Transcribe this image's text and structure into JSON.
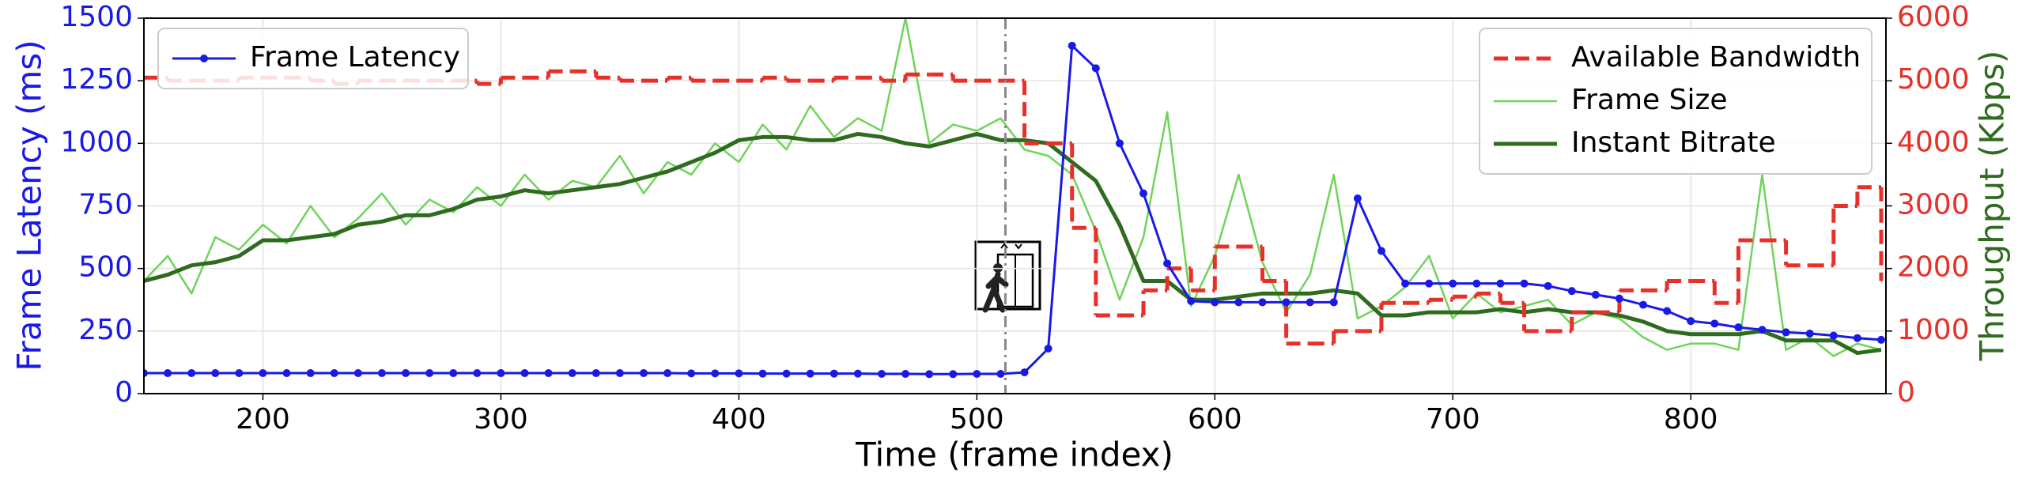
{
  "chart_data": {
    "type": "line",
    "xlabel": "Time (frame index)",
    "ylabel": "Frame Latency (ms)",
    "y2label": "Throughput (Kbps)",
    "ycolor": "#1a1ae6",
    "y2tick_color": "#e8302a",
    "y2label_color": "#2e6b1f",
    "x": [
      150,
      160,
      170,
      180,
      190,
      200,
      210,
      220,
      230,
      240,
      250,
      260,
      270,
      280,
      290,
      300,
      310,
      320,
      330,
      340,
      350,
      360,
      370,
      380,
      390,
      400,
      410,
      420,
      430,
      440,
      450,
      460,
      470,
      480,
      490,
      500,
      510,
      520,
      530,
      540,
      550,
      560,
      570,
      580,
      590,
      600,
      610,
      620,
      630,
      640,
      650,
      660,
      670,
      680,
      690,
      700,
      710,
      720,
      730,
      740,
      750,
      760,
      770,
      780,
      790,
      800,
      810,
      820,
      830,
      840,
      850,
      860,
      870,
      880
    ],
    "xlim": [
      150,
      882
    ],
    "xticks": [
      200,
      300,
      400,
      500,
      600,
      700,
      800
    ],
    "ylim": [
      0,
      1500
    ],
    "yticks": [
      0,
      250,
      500,
      750,
      1000,
      1250,
      1500
    ],
    "y2lim": [
      0,
      6000
    ],
    "y2ticks": [
      0,
      1000,
      2000,
      3000,
      4000,
      5000,
      6000
    ],
    "grid": true,
    "vline": 512,
    "legend": "upper left",
    "legend2": "upper right",
    "series": [
      {
        "name": "Frame Latency",
        "color": "#1a1ae6",
        "marker": true,
        "width": 3,
        "values": [
          82,
          82,
          82,
          82,
          82,
          82,
          82,
          82,
          82,
          82,
          82,
          82,
          82,
          82,
          82,
          82,
          82,
          82,
          82,
          82,
          82,
          82,
          82,
          81,
          81,
          81,
          80,
          80,
          80,
          80,
          80,
          79,
          79,
          78,
          78,
          79,
          79,
          85,
          180,
          1390,
          1300,
          1000,
          800,
          520,
          370,
          365,
          365,
          365,
          365,
          365,
          365,
          780,
          570,
          440,
          440,
          440,
          440,
          440,
          440,
          430,
          410,
          395,
          380,
          355,
          330,
          290,
          280,
          265,
          255,
          245,
          240,
          232,
          222,
          215
        ]
      },
      {
        "name": "Available Bandwidth",
        "color": "#e8302a",
        "axis": "y2",
        "dash": true,
        "drawstyle": "steps-post",
        "width": 5,
        "values": [
          5050,
          5000,
          5000,
          5000,
          5050,
          5050,
          5050,
          5000,
          4950,
          5000,
          5000,
          5000,
          5000,
          5000,
          4950,
          5050,
          5050,
          5150,
          5150,
          5050,
          5000,
          5000,
          5050,
          5000,
          5000,
          5000,
          5050,
          5000,
          5000,
          5050,
          5050,
          5000,
          5100,
          5100,
          5000,
          5000,
          5000,
          4000,
          4000,
          2650,
          1250,
          1250,
          1650,
          2000,
          1650,
          2350,
          2350,
          1800,
          800,
          800,
          1000,
          1000,
          1450,
          1450,
          1500,
          1550,
          1600,
          1450,
          1000,
          1000,
          1300,
          1300,
          1650,
          1650,
          1800,
          1800,
          1450,
          2450,
          2450,
          2050,
          2050,
          3000,
          3300,
          1800
        ]
      },
      {
        "name": "Frame Size",
        "color": "#6fd45a",
        "axis": "y2",
        "width": 2.5,
        "values": [
          1800,
          2200,
          1600,
          2500,
          2300,
          2700,
          2400,
          3000,
          2500,
          2800,
          3200,
          2700,
          3100,
          2900,
          3300,
          3000,
          3500,
          3100,
          3400,
          3300,
          3800,
          3200,
          3700,
          3500,
          4000,
          3700,
          4300,
          3900,
          4600,
          4100,
          4400,
          4200,
          6000,
          4000,
          4300,
          4200,
          4400,
          3900,
          3800,
          3500,
          2600,
          1500,
          2500,
          4500,
          1400,
          2200,
          3500,
          2100,
          1300,
          1900,
          3500,
          1200,
          1400,
          1700,
          2200,
          1200,
          1600,
          1300,
          1400,
          1500,
          1100,
          1300,
          1200,
          900,
          700,
          800,
          800,
          700,
          3500,
          700,
          900,
          600,
          800,
          700
        ]
      },
      {
        "name": "Instant Bitrate",
        "color": "#2e6b1f",
        "axis": "y2",
        "width": 5,
        "values": [
          1800,
          1900,
          2050,
          2100,
          2200,
          2450,
          2450,
          2500,
          2550,
          2700,
          2750,
          2850,
          2850,
          2950,
          3100,
          3150,
          3250,
          3200,
          3250,
          3300,
          3350,
          3450,
          3550,
          3700,
          3850,
          4050,
          4100,
          4100,
          4050,
          4050,
          4150,
          4100,
          4000,
          3950,
          4050,
          4150,
          4050,
          4050,
          4000,
          3700,
          3400,
          2700,
          1800,
          1800,
          1500,
          1500,
          1550,
          1600,
          1600,
          1600,
          1650,
          1600,
          1250,
          1250,
          1300,
          1300,
          1300,
          1350,
          1300,
          1350,
          1300,
          1300,
          1250,
          1150,
          1000,
          950,
          950,
          950,
          1000,
          850,
          850,
          850,
          650,
          700
        ]
      }
    ]
  }
}
